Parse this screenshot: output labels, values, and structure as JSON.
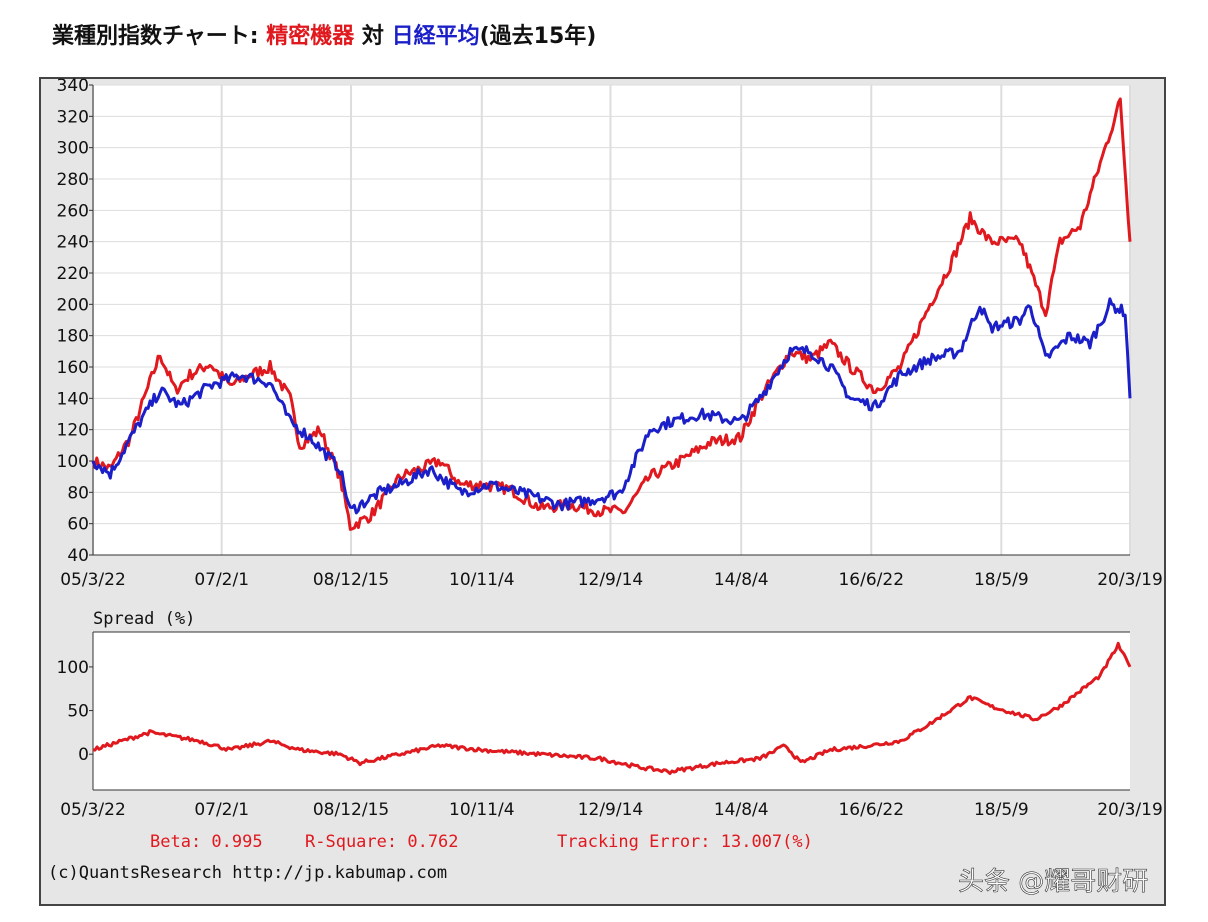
{
  "title": {
    "prefix": "業種別指数チャート: ",
    "sector": "精密機器",
    "vs": " 対 ",
    "benchmark": "日経平均",
    "suffix": "(過去15年)"
  },
  "colors": {
    "sector": "#e0191f",
    "benchmark": "#1a1fc8",
    "spread": "#e0191f",
    "panel": "#e6e6e6"
  },
  "chart_data": [
    {
      "type": "line",
      "title": "精密機器 対 日経平均",
      "ylim": [
        40,
        340
      ],
      "yticks": [
        40,
        60,
        80,
        100,
        120,
        140,
        160,
        180,
        200,
        220,
        240,
        260,
        280,
        300,
        320,
        340
      ],
      "xlim": [
        2005.22,
        2020.21
      ],
      "xtick_values": [
        2005.22,
        2007.08,
        2008.95,
        2010.84,
        2012.7,
        2014.59,
        2016.47,
        2018.35,
        2020.21
      ],
      "xtick_labels": [
        "05/3/22",
        "07/2/1",
        "08/12/15",
        "10/11/4",
        "12/9/14",
        "14/8/4",
        "16/6/22",
        "18/5/9",
        "20/3/19"
      ],
      "grid": true,
      "series": [
        {
          "name": "精密機器",
          "color": "#e0191f",
          "x": [
            2005.22,
            2005.47,
            2005.76,
            2006.04,
            2006.19,
            2006.41,
            2006.62,
            2006.91,
            2007.2,
            2007.49,
            2007.78,
            2008.07,
            2008.21,
            2008.5,
            2008.79,
            2008.94,
            2009.23,
            2009.66,
            2009.95,
            2010.24,
            2010.53,
            2010.82,
            2011.25,
            2011.68,
            2012.12,
            2012.55,
            2012.91,
            2013.27,
            2013.71,
            2014.14,
            2014.58,
            2014.86,
            2015.3,
            2015.59,
            2015.88,
            2016.17,
            2016.53,
            2016.89,
            2017.32,
            2017.61,
            2017.9,
            2018.19,
            2018.62,
            2018.99,
            2019.2,
            2019.49,
            2019.78,
            2020.07,
            2020.21
          ],
          "y": [
            100,
            95,
            115,
            150,
            168,
            145,
            155,
            162,
            148,
            155,
            160,
            140,
            110,
            120,
            90,
            58,
            65,
            90,
            95,
            100,
            85,
            85,
            82,
            70,
            72,
            68,
            68,
            90,
            100,
            112,
            115,
            140,
            170,
            165,
            175,
            160,
            145,
            160,
            200,
            225,
            255,
            240,
            240,
            195,
            240,
            250,
            290,
            330,
            240
          ]
        },
        {
          "name": "日経平均",
          "color": "#1a1fc8",
          "x": [
            2005.22,
            2005.47,
            2005.9,
            2006.19,
            2006.48,
            2006.91,
            2007.35,
            2007.78,
            2008.07,
            2008.36,
            2008.79,
            2008.94,
            2009.37,
            2009.66,
            2010.09,
            2010.53,
            2010.96,
            2011.54,
            2011.97,
            2012.41,
            2012.84,
            2013.27,
            2013.56,
            2014.0,
            2014.58,
            2014.86,
            2015.3,
            2015.59,
            2015.88,
            2016.17,
            2016.53,
            2016.89,
            2017.32,
            2017.75,
            2018.04,
            2018.19,
            2018.62,
            2018.77,
            2018.99,
            2019.34,
            2019.63,
            2019.92,
            2020.14,
            2020.21
          ],
          "y": [
            100,
            92,
            125,
            145,
            135,
            148,
            155,
            150,
            125,
            115,
            95,
            68,
            80,
            85,
            95,
            80,
            85,
            78,
            72,
            75,
            80,
            120,
            125,
            130,
            125,
            140,
            170,
            170,
            160,
            140,
            135,
            155,
            165,
            170,
            200,
            185,
            190,
            200,
            165,
            180,
            175,
            200,
            195,
            140
          ]
        }
      ]
    },
    {
      "type": "line",
      "title": "Spread (%)",
      "ylim": [
        -41,
        140
      ],
      "yticks": [
        0,
        50,
        100
      ],
      "xlim": [
        2005.22,
        2020.21
      ],
      "xtick_values": [
        2005.22,
        2007.08,
        2008.95,
        2010.84,
        2012.7,
        2014.59,
        2016.47,
        2018.35,
        2020.21
      ],
      "xtick_labels": [
        "05/3/22",
        "07/2/1",
        "08/12/15",
        "10/11/4",
        "12/9/14",
        "14/8/4",
        "16/6/22",
        "18/5/9",
        "20/3/19"
      ],
      "series": [
        {
          "name": "Spread",
          "color": "#e0191f",
          "x": [
            2005.22,
            2006.04,
            2006.77,
            2007.2,
            2007.78,
            2008.21,
            2008.79,
            2009.08,
            2009.66,
            2010.24,
            2010.82,
            2011.68,
            2012.55,
            2013.12,
            2013.56,
            2014.29,
            2014.86,
            2015.23,
            2015.45,
            2015.88,
            2016.45,
            2016.89,
            2017.32,
            2017.9,
            2018.19,
            2018.84,
            2019.2,
            2019.78,
            2020.04,
            2020.21
          ],
          "y": [
            5,
            25,
            15,
            5,
            15,
            5,
            0,
            -10,
            0,
            10,
            5,
            0,
            -5,
            -15,
            -20,
            -10,
            -5,
            10,
            -10,
            5,
            10,
            15,
            35,
            65,
            55,
            40,
            55,
            90,
            125,
            100
          ]
        }
      ]
    }
  ],
  "stats": {
    "beta": "Beta: 0.995",
    "r_square": "R-Square: 0.762",
    "tracking_error": "Tracking Error: 13.007(%)"
  },
  "credit": "(c)QuantsResearch http://jp.kabumap.com",
  "watermark": "头条 @耀哥财研"
}
